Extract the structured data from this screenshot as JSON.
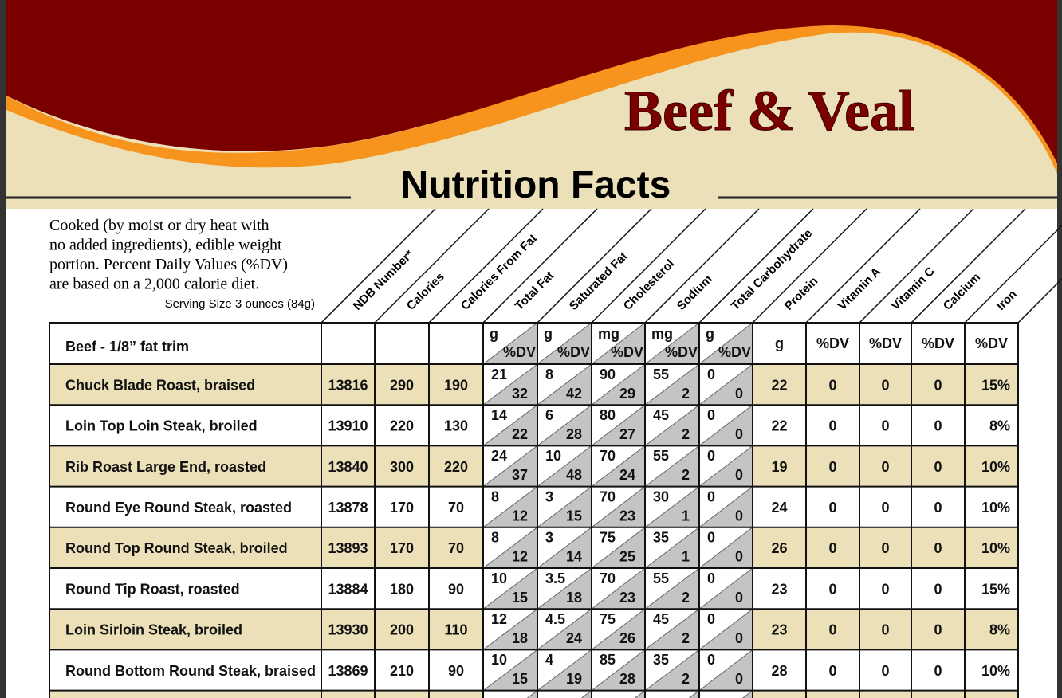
{
  "header": {
    "title": "Beef & Veal",
    "subtitle": "Nutrition Facts"
  },
  "intro": [
    "Cooked (by moist or dry heat with",
    "no added ingredients), edible weight",
    "portion.  Percent Daily Values (%DV)",
    "are based on a 2,000 calorie diet."
  ],
  "serving_size": "Serving Size 3 ounces (84g)",
  "table": {
    "group_label": "Beef - 1/8” fat trim",
    "columns": [
      "NDB Number*",
      "Calories",
      "Calories From Fat",
      "Total Fat",
      "Saturated Fat",
      "Cholesterol",
      "Sodium",
      "Total Carbohydrate",
      "Protein",
      "Vitamin A",
      "Vitamin C",
      "Calcium",
      "Iron"
    ],
    "units": [
      null,
      null,
      null,
      [
        "g",
        "%DV"
      ],
      [
        "g",
        "%DV"
      ],
      [
        "mg",
        "%DV"
      ],
      [
        "mg",
        "%DV"
      ],
      [
        "g",
        "%DV"
      ],
      "g",
      "%DV",
      "%DV",
      "%DV",
      "%DV"
    ],
    "rows": [
      {
        "name": "Chuck Blade Roast, braised",
        "values": [
          13816,
          290,
          190,
          [
            21,
            32
          ],
          [
            8,
            42
          ],
          [
            90,
            29
          ],
          [
            55,
            2
          ],
          [
            0,
            0
          ],
          22,
          0,
          0,
          0,
          "15%"
        ]
      },
      {
        "name": "Loin Top Loin Steak, broiled",
        "values": [
          13910,
          220,
          130,
          [
            14,
            22
          ],
          [
            6,
            28
          ],
          [
            80,
            27
          ],
          [
            45,
            2
          ],
          [
            0,
            0
          ],
          22,
          0,
          0,
          0,
          "8%"
        ]
      },
      {
        "name": "Rib Roast Large End, roasted",
        "values": [
          13840,
          300,
          220,
          [
            24,
            37
          ],
          [
            10,
            48
          ],
          [
            70,
            24
          ],
          [
            55,
            2
          ],
          [
            0,
            0
          ],
          19,
          0,
          0,
          0,
          "10%"
        ]
      },
      {
        "name": "Round Eye Round Steak, roasted",
        "values": [
          13878,
          170,
          70,
          [
            8,
            12
          ],
          [
            3,
            15
          ],
          [
            70,
            23
          ],
          [
            30,
            1
          ],
          [
            0,
            0
          ],
          24,
          0,
          0,
          0,
          "10%"
        ]
      },
      {
        "name": "Round Top Round Steak, broiled",
        "values": [
          13893,
          170,
          70,
          [
            8,
            12
          ],
          [
            3,
            14
          ],
          [
            75,
            25
          ],
          [
            35,
            1
          ],
          [
            0,
            0
          ],
          26,
          0,
          0,
          0,
          "10%"
        ]
      },
      {
        "name": "Round Tip Roast, roasted",
        "values": [
          13884,
          180,
          90,
          [
            10,
            15
          ],
          [
            3.5,
            18
          ],
          [
            70,
            23
          ],
          [
            55,
            2
          ],
          [
            0,
            0
          ],
          23,
          0,
          0,
          0,
          "15%"
        ]
      },
      {
        "name": "Loin Sirloin Steak, broiled",
        "values": [
          13930,
          200,
          110,
          [
            12,
            18
          ],
          [
            4.5,
            24
          ],
          [
            75,
            26
          ],
          [
            45,
            2
          ],
          [
            0,
            0
          ],
          23,
          0,
          0,
          0,
          "8%"
        ]
      },
      {
        "name": "Round Bottom Round Steak, braised",
        "values": [
          13869,
          210,
          90,
          [
            10,
            15
          ],
          [
            4,
            19
          ],
          [
            85,
            28
          ],
          [
            35,
            2
          ],
          [
            0,
            0
          ],
          28,
          0,
          0,
          0,
          "10%"
        ]
      }
    ]
  }
}
